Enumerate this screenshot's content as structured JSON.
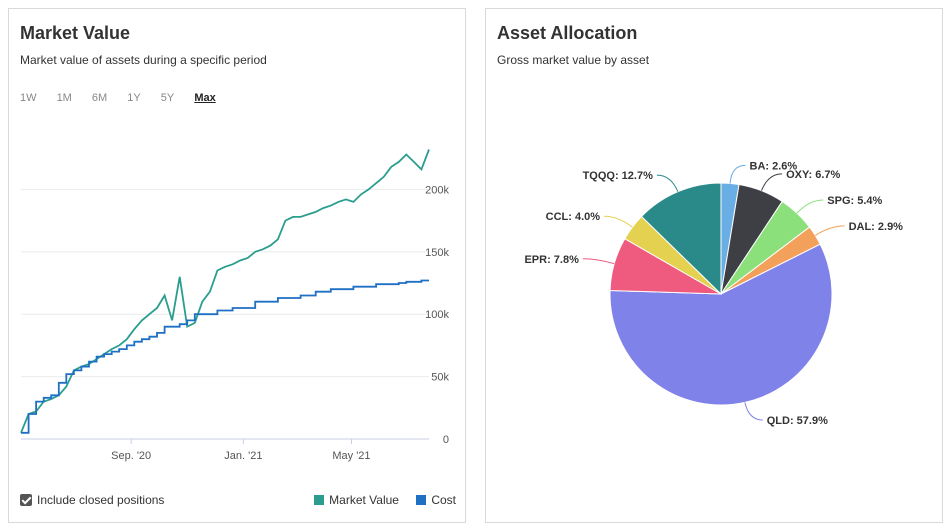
{
  "market_value_card": {
    "title": "Market Value",
    "subtitle": "Market value of assets during a specific period",
    "ranges": [
      "1W",
      "1M",
      "6M",
      "1Y",
      "5Y",
      "Max"
    ],
    "active_range": "Max",
    "include_closed_label": "Include closed positions",
    "include_closed_checked": true
  },
  "allocation_card": {
    "title": "Asset Allocation",
    "subtitle": "Gross market value by asset"
  },
  "colors": {
    "market_value": "#2a9d8f",
    "cost": "#1f6fc4"
  },
  "chart_data": [
    {
      "type": "line",
      "title": "Market Value",
      "x_tick_labels": [
        "Sep. '20",
        "Jan. '21",
        "May '21"
      ],
      "y_tick_labels": [
        "0",
        "50k",
        "100k",
        "150k",
        "200k"
      ],
      "ylim": [
        0,
        250000
      ],
      "series": [
        {
          "name": "Market Value",
          "color": "#2a9d8f",
          "values": [
            5000,
            20000,
            22000,
            30000,
            32000,
            35000,
            42000,
            55000,
            58000,
            60000,
            64000,
            68000,
            72000,
            75000,
            80000,
            88000,
            95000,
            100000,
            105000,
            115000,
            95000,
            130000,
            90000,
            93000,
            110000,
            118000,
            135000,
            138000,
            140000,
            143000,
            145000,
            150000,
            152000,
            155000,
            160000,
            175000,
            178000,
            178000,
            180000,
            182000,
            185000,
            187000,
            190000,
            192000,
            190000,
            196000,
            200000,
            205000,
            210000,
            218000,
            222000,
            228000,
            222000,
            216000,
            232000
          ]
        },
        {
          "name": "Cost",
          "color": "#1f6fc4",
          "values": [
            5000,
            20000,
            30000,
            33000,
            35000,
            45000,
            52000,
            55000,
            58000,
            62000,
            66000,
            68000,
            70000,
            72000,
            75000,
            78000,
            80000,
            82000,
            85000,
            90000,
            90000,
            92000,
            95000,
            100000,
            100000,
            100000,
            103000,
            103000,
            105000,
            105000,
            105000,
            110000,
            110000,
            110000,
            113000,
            113000,
            113000,
            115000,
            115000,
            118000,
            118000,
            120000,
            120000,
            120000,
            122000,
            122000,
            122000,
            124000,
            124000,
            124000,
            125000,
            126000,
            126000,
            127000,
            127000
          ]
        }
      ],
      "legend": [
        "Market Value",
        "Cost"
      ],
      "legend_placement": "bottom-right"
    },
    {
      "type": "pie",
      "title": "Asset Allocation",
      "slices": [
        {
          "label": "BA",
          "value": 2.6,
          "display": "BA: 2.6%",
          "color": "#6aaee6"
        },
        {
          "label": "OXY",
          "value": 6.7,
          "display": "OXY: 6.7%",
          "color": "#3d3f45"
        },
        {
          "label": "SPG",
          "value": 5.4,
          "display": "SPG: 5.4%",
          "color": "#8be07b"
        },
        {
          "label": "DAL",
          "value": 2.9,
          "display": "DAL: 2.9%",
          "color": "#f3a05a"
        },
        {
          "label": "QLD",
          "value": 57.9,
          "display": "QLD: 57.9%",
          "color": "#7f82e8"
        },
        {
          "label": "EPR",
          "value": 7.8,
          "display": "EPR: 7.8%",
          "color": "#ef5b7e"
        },
        {
          "label": "CCL",
          "value": 4.0,
          "display": "CCL: 4.0%",
          "color": "#e4d150"
        },
        {
          "label": "TQQQ",
          "value": 12.7,
          "display": "TQQQ: 12.7%",
          "color": "#2a8a89"
        }
      ]
    }
  ]
}
